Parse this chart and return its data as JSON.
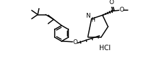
{
  "background_color": "#ffffff",
  "line_color": "#000000",
  "line_width": 1.1,
  "figsize": [
    2.15,
    0.93
  ],
  "dpi": 100,
  "hcl_label": "HCl",
  "nh_label": "NH",
  "o_label": "O",
  "o2_label": "O"
}
